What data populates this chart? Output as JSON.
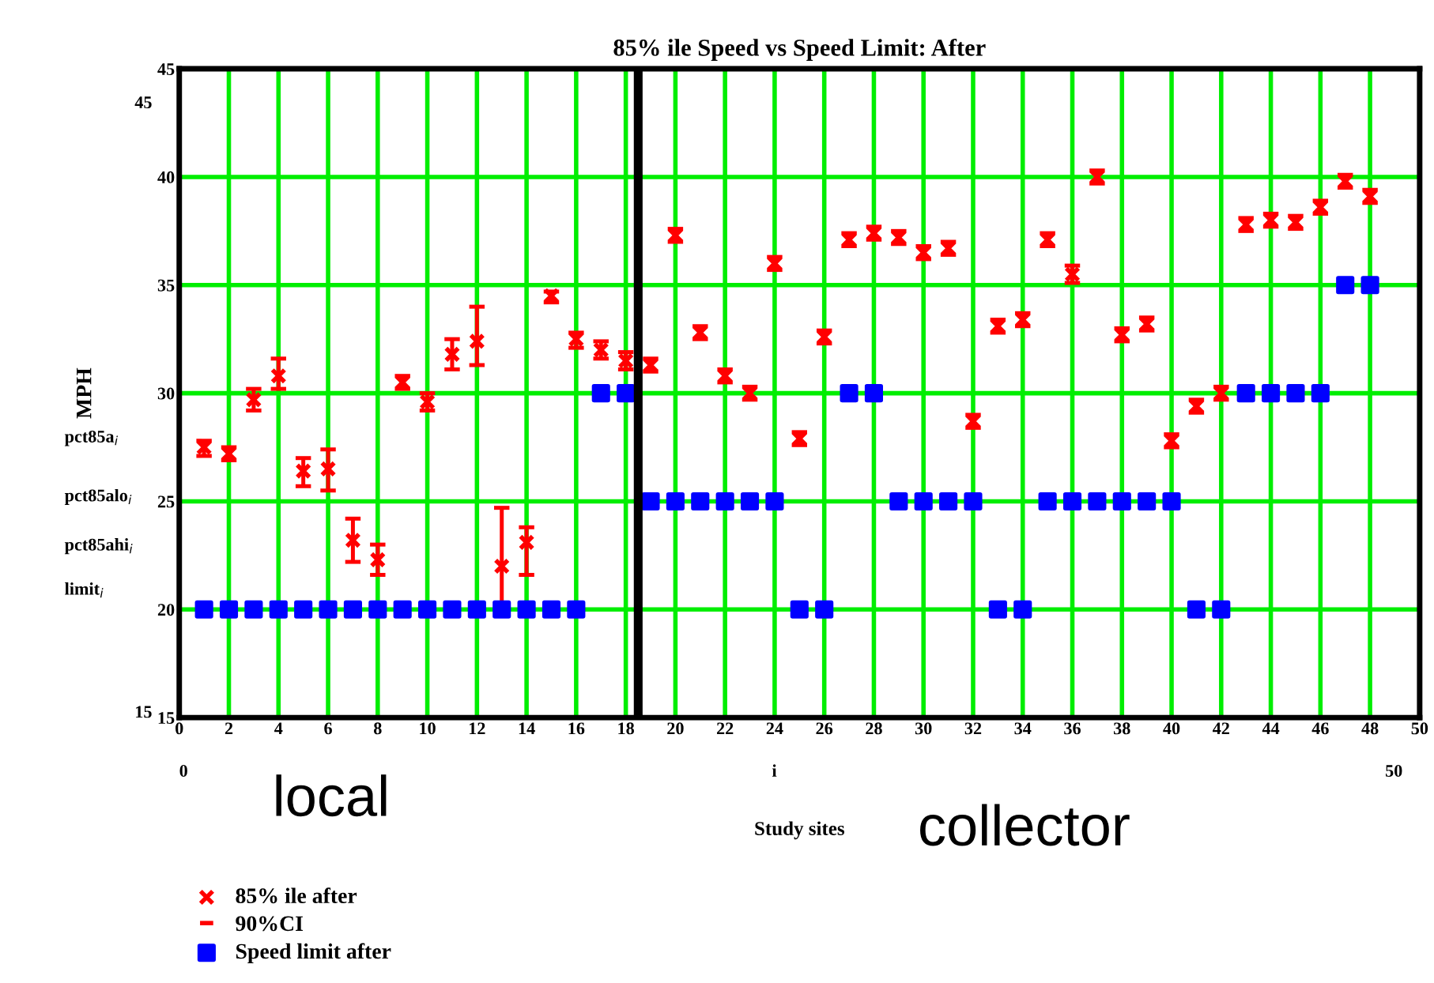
{
  "chart_data": {
    "type": "scatter",
    "title": "85% ile Speed vs Speed Limit: After",
    "xlabel": "Study sites",
    "ylabel": "MPH",
    "x": [
      1,
      2,
      3,
      4,
      5,
      6,
      7,
      8,
      9,
      10,
      11,
      12,
      13,
      14,
      15,
      16,
      17,
      18,
      19,
      20,
      21,
      22,
      23,
      24,
      25,
      26,
      27,
      28,
      29,
      30,
      31,
      32,
      33,
      34,
      35,
      36,
      37,
      38,
      39,
      40,
      41,
      42,
      43,
      44,
      45,
      46,
      47,
      48
    ],
    "series": [
      {
        "name": "85% ile after",
        "color": "#ff0000",
        "marker": "cross",
        "values": [
          27.5,
          27.2,
          29.7,
          30.8,
          26.4,
          26.5,
          23.2,
          22.3,
          30.5,
          29.6,
          31.8,
          32.4,
          22.0,
          23.1,
          34.5,
          32.5,
          32.0,
          31.5,
          31.3,
          37.3,
          32.8,
          30.8,
          30.0,
          36.0,
          27.9,
          32.6,
          37.1,
          37.4,
          37.2,
          36.5,
          36.7,
          28.7,
          33.1,
          33.4,
          37.1,
          35.5,
          40.0,
          32.7,
          33.2,
          27.8,
          29.4,
          30.0,
          37.8,
          38.0,
          37.9,
          38.6,
          39.8,
          39.1
        ],
        "errors": [
          [
            27.1,
            27.8
          ],
          [
            26.9,
            27.5
          ],
          [
            29.2,
            30.2
          ],
          [
            30.2,
            31.6
          ],
          [
            25.7,
            27.0
          ],
          [
            25.5,
            27.4
          ],
          [
            22.2,
            24.2
          ],
          [
            21.6,
            23.0
          ],
          [
            30.2,
            30.8
          ],
          [
            29.2,
            30.0
          ],
          [
            31.1,
            32.5
          ],
          [
            31.3,
            34.0
          ],
          [
            20.3,
            24.7
          ],
          [
            21.6,
            23.8
          ],
          [
            34.2,
            34.7
          ],
          [
            32.1,
            32.8
          ],
          [
            31.6,
            32.4
          ],
          [
            31.1,
            31.9
          ],
          [
            31.0,
            31.6
          ],
          [
            37.0,
            37.6
          ],
          [
            32.5,
            33.1
          ],
          [
            30.5,
            31.1
          ],
          [
            29.7,
            30.3
          ],
          [
            35.7,
            36.3
          ],
          [
            27.6,
            28.2
          ],
          [
            32.3,
            32.9
          ],
          [
            36.8,
            37.4
          ],
          [
            37.1,
            37.7
          ],
          [
            36.9,
            37.5
          ],
          [
            36.2,
            36.8
          ],
          [
            36.4,
            37.0
          ],
          [
            28.4,
            29.0
          ],
          [
            32.8,
            33.4
          ],
          [
            33.1,
            33.7
          ],
          [
            36.8,
            37.4
          ],
          [
            35.1,
            35.9
          ],
          [
            39.7,
            40.3
          ],
          [
            32.4,
            33.0
          ],
          [
            32.9,
            33.5
          ],
          [
            27.5,
            28.1
          ],
          [
            29.1,
            29.7
          ],
          [
            29.7,
            30.3
          ],
          [
            37.5,
            38.1
          ],
          [
            37.7,
            38.3
          ],
          [
            37.6,
            38.2
          ],
          [
            38.3,
            38.9
          ],
          [
            39.5,
            40.1
          ],
          [
            38.8,
            39.4
          ]
        ]
      },
      {
        "name": "Speed limit after",
        "color": "#0000ff",
        "marker": "square",
        "values": [
          20,
          20,
          20,
          20,
          20,
          20,
          20,
          20,
          20,
          20,
          20,
          20,
          20,
          20,
          20,
          20,
          30,
          30,
          25,
          25,
          25,
          25,
          25,
          25,
          20,
          20,
          30,
          30,
          25,
          25,
          25,
          25,
          20,
          20,
          25,
          25,
          25,
          25,
          25,
          25,
          20,
          20,
          30,
          30,
          30,
          30,
          35,
          35
        ]
      }
    ],
    "xlim": [
      0,
      50
    ],
    "xticks": [
      0,
      2,
      4,
      6,
      8,
      10,
      12,
      14,
      16,
      18,
      20,
      22,
      24,
      26,
      28,
      30,
      32,
      34,
      36,
      38,
      40,
      42,
      44,
      46,
      48,
      50
    ],
    "ylim": [
      15,
      45
    ],
    "yticks": [
      15,
      20,
      25,
      30,
      35,
      40,
      45
    ],
    "ref_lines": [
      {
        "axis": "x",
        "value": 18.5,
        "color": "#000000"
      }
    ],
    "grid": true,
    "legend": "bottom left",
    "annotations": [
      "90%CI",
      "local",
      "collector",
      "0",
      "i",
      "50",
      "pct85a$_{i}$",
      "pct85alo$_{i}$",
      "pct85ahi$_{i}$",
      "limit$_{i}$",
      "45",
      "15"
    ]
  }
}
